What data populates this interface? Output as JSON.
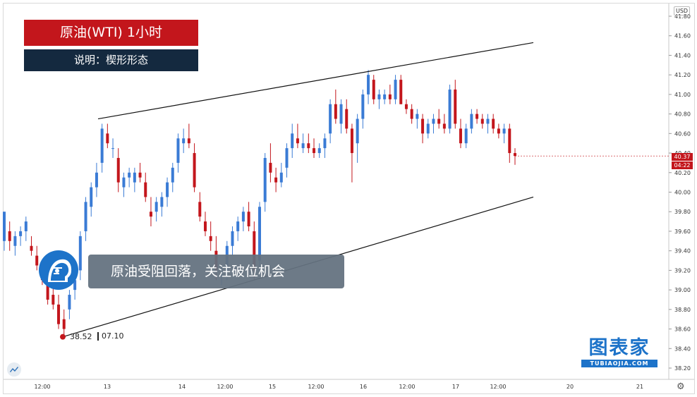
{
  "title": "原油(WTI)  1小时",
  "subtitle": "说明：楔形形态",
  "annotation": "原油受阻回落，关注破位机会",
  "low_marker": {
    "value": "38.52",
    "date": "07.10"
  },
  "currency": "USD",
  "last_price": "40.37",
  "countdown": "04:22",
  "logo": {
    "main": "图表家",
    "sub": "TUBIAOJIA.COM"
  },
  "colors": {
    "up": "#3a7bd5",
    "down": "#c3161c",
    "title_bg": "#c3161c",
    "desc_bg": "#14293f"
  },
  "icons": [
    "avatar-icon",
    "gear-icon",
    "tradingview-logo-icon"
  ],
  "chart_data": {
    "type": "candlestick",
    "ylim": [
      38.2,
      41.8
    ],
    "y_ticks": [
      "41.80",
      "41.60",
      "41.40",
      "41.20",
      "41.00",
      "40.80",
      "40.60",
      "40.40",
      "40.20",
      "40.00",
      "39.80",
      "39.60",
      "39.40",
      "39.20",
      "39.00",
      "38.80",
      "38.60",
      "38.40",
      "38.20"
    ],
    "x_ticks": [
      "12:00",
      "13",
      "14",
      "12:00",
      "15",
      "12:00",
      "16",
      "12:00",
      "17",
      "12:00",
      "20",
      "21"
    ],
    "candles": [
      [
        39.5,
        39.8,
        39.4,
        39.8
      ],
      [
        39.6,
        39.7,
        39.4,
        39.5
      ],
      [
        39.45,
        39.6,
        39.35,
        39.55
      ],
      [
        39.55,
        39.65,
        39.45,
        39.6
      ],
      [
        39.6,
        39.75,
        39.5,
        39.7
      ],
      [
        39.45,
        39.55,
        39.35,
        39.4
      ],
      [
        39.35,
        39.45,
        39.2,
        39.25
      ],
      [
        39.2,
        39.3,
        39.05,
        39.1
      ],
      [
        39.05,
        39.15,
        38.85,
        38.9
      ],
      [
        38.95,
        39.05,
        38.8,
        38.85
      ],
      [
        38.85,
        38.95,
        38.6,
        38.65
      ],
      [
        38.7,
        38.8,
        38.52,
        38.6
      ],
      [
        38.8,
        39.0,
        38.7,
        38.95
      ],
      [
        39.0,
        39.15,
        38.9,
        39.1
      ],
      [
        39.2,
        39.6,
        39.1,
        39.55
      ],
      [
        39.6,
        39.95,
        39.5,
        39.9
      ],
      [
        39.85,
        40.1,
        39.75,
        40.05
      ],
      [
        40.05,
        40.3,
        39.95,
        40.2
      ],
      [
        40.3,
        40.7,
        40.2,
        40.65
      ],
      [
        40.6,
        40.7,
        40.45,
        40.5
      ],
      [
        40.45,
        40.55,
        40.35,
        40.45
      ],
      [
        40.35,
        40.45,
        40.0,
        40.1
      ],
      [
        40.05,
        40.2,
        39.95,
        40.15
      ],
      [
        40.15,
        40.25,
        40.05,
        40.2
      ],
      [
        40.1,
        40.25,
        40.0,
        40.2
      ],
      [
        40.2,
        40.3,
        40.1,
        40.15
      ],
      [
        40.1,
        40.2,
        39.9,
        39.95
      ],
      [
        39.8,
        39.95,
        39.65,
        39.75
      ],
      [
        39.8,
        39.95,
        39.7,
        39.9
      ],
      [
        39.85,
        40.0,
        39.75,
        39.95
      ],
      [
        39.95,
        40.15,
        39.85,
        40.1
      ],
      [
        40.1,
        40.3,
        40.0,
        40.25
      ],
      [
        40.3,
        40.6,
        40.2,
        40.55
      ],
      [
        40.5,
        40.65,
        40.4,
        40.55
      ],
      [
        40.55,
        40.7,
        40.45,
        40.5
      ],
      [
        40.4,
        40.5,
        40.0,
        40.05
      ],
      [
        39.9,
        40.0,
        39.7,
        39.75
      ],
      [
        39.7,
        39.8,
        39.55,
        39.6
      ],
      [
        39.55,
        39.7,
        39.4,
        39.5
      ],
      [
        39.4,
        39.55,
        39.1,
        39.2
      ],
      [
        39.15,
        39.25,
        39.05,
        39.15
      ],
      [
        39.2,
        39.5,
        39.1,
        39.45
      ],
      [
        39.45,
        39.65,
        39.35,
        39.6
      ],
      [
        39.6,
        39.75,
        39.5,
        39.7
      ],
      [
        39.7,
        39.85,
        39.6,
        39.8
      ],
      [
        39.8,
        39.9,
        39.6,
        39.65
      ],
      [
        39.6,
        39.7,
        39.1,
        39.2
      ],
      [
        39.3,
        39.9,
        39.2,
        39.85
      ],
      [
        39.9,
        40.4,
        39.8,
        40.35
      ],
      [
        40.3,
        40.5,
        40.1,
        40.2
      ],
      [
        40.15,
        40.25,
        40.0,
        40.1
      ],
      [
        40.1,
        40.3,
        40.05,
        40.2
      ],
      [
        40.25,
        40.5,
        40.15,
        40.45
      ],
      [
        40.45,
        40.7,
        40.35,
        40.6
      ],
      [
        40.55,
        40.7,
        40.45,
        40.5
      ],
      [
        40.45,
        40.6,
        40.4,
        40.5
      ],
      [
        40.5,
        40.6,
        40.4,
        40.45
      ],
      [
        40.45,
        40.55,
        40.35,
        40.4
      ],
      [
        40.4,
        40.5,
        40.35,
        40.45
      ],
      [
        40.45,
        40.6,
        40.35,
        40.55
      ],
      [
        40.6,
        40.95,
        40.5,
        40.9
      ],
      [
        40.9,
        41.05,
        40.7,
        40.75
      ],
      [
        40.7,
        40.95,
        40.6,
        40.9
      ],
      [
        40.85,
        40.95,
        40.6,
        40.65
      ],
      [
        40.65,
        40.7,
        40.1,
        40.4
      ],
      [
        40.5,
        40.8,
        40.3,
        40.75
      ],
      [
        40.75,
        41.05,
        40.65,
        41.0
      ],
      [
        41.0,
        41.25,
        40.9,
        41.2
      ],
      [
        41.15,
        41.2,
        40.9,
        40.95
      ],
      [
        40.95,
        41.05,
        40.85,
        41.0
      ],
      [
        40.95,
        41.05,
        40.9,
        41.0
      ],
      [
        41.0,
        41.1,
        40.9,
        40.95
      ],
      [
        40.95,
        41.2,
        40.9,
        41.15
      ],
      [
        41.15,
        41.2,
        40.9,
        40.9
      ],
      [
        40.9,
        40.95,
        40.8,
        40.85
      ],
      [
        40.85,
        40.9,
        40.7,
        40.75
      ],
      [
        40.75,
        40.85,
        40.65,
        40.8
      ],
      [
        40.75,
        40.8,
        40.5,
        40.6
      ],
      [
        40.6,
        40.75,
        40.55,
        40.7
      ],
      [
        40.7,
        40.8,
        40.6,
        40.75
      ],
      [
        40.75,
        40.85,
        40.65,
        40.7
      ],
      [
        40.7,
        40.8,
        40.6,
        40.65
      ],
      [
        40.65,
        41.1,
        40.6,
        41.05
      ],
      [
        41.05,
        41.15,
        40.65,
        40.7
      ],
      [
        40.65,
        40.75,
        40.45,
        40.5
      ],
      [
        40.5,
        40.7,
        40.45,
        40.65
      ],
      [
        40.65,
        40.85,
        40.6,
        40.8
      ],
      [
        40.8,
        40.85,
        40.7,
        40.75
      ],
      [
        40.75,
        40.8,
        40.65,
        40.7
      ],
      [
        40.7,
        40.8,
        40.6,
        40.75
      ],
      [
        40.75,
        40.8,
        40.6,
        40.65
      ],
      [
        40.65,
        40.7,
        40.55,
        40.6
      ],
      [
        40.6,
        40.7,
        40.5,
        40.65
      ],
      [
        40.65,
        40.7,
        40.3,
        40.4
      ],
      [
        40.4,
        40.45,
        40.28,
        40.37
      ]
    ],
    "wedge": {
      "upper": [
        [
          40.75,
          41.53
        ]
      ],
      "lower": [
        [
          38.52,
          39.95
        ]
      ]
    }
  }
}
